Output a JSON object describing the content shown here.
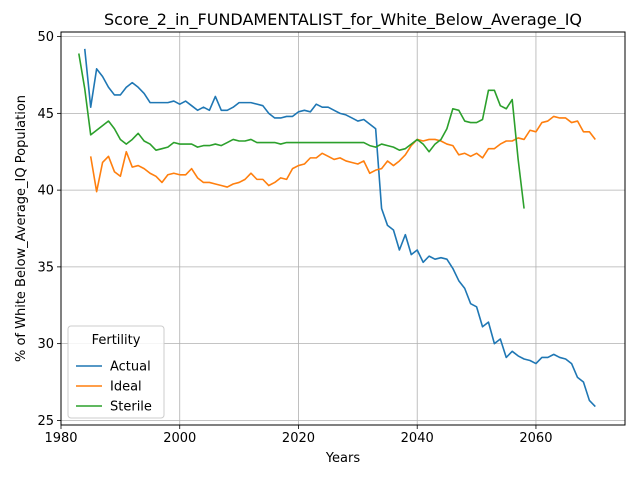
{
  "chart_data": {
    "type": "line",
    "title": "Score_2_in_FUNDAMENTALIST_for_White_Below_Average_IQ",
    "xlabel": "Years",
    "ylabel": "% of White Below_Average_IQ Population",
    "xlim": [
      1980,
      2075
    ],
    "ylim": [
      24.7,
      50.3
    ],
    "xticks": [
      1980,
      2000,
      2020,
      2040,
      2060
    ],
    "yticks": [
      25,
      30,
      35,
      40,
      45,
      50
    ],
    "grid": true,
    "legend": {
      "title": "Fertility",
      "position": "lower-left"
    },
    "colors": {
      "Actual": "#1f77b4",
      "Ideal": "#ff7f0e",
      "Sterile": "#2ca02c"
    },
    "series": [
      {
        "name": "Actual",
        "x": [
          1984,
          1985,
          1986,
          1987,
          1988,
          1989,
          1990,
          1991,
          1992,
          1993,
          1994,
          1995,
          1996,
          1997,
          1998,
          1999,
          2000,
          2001,
          2002,
          2003,
          2004,
          2005,
          2006,
          2007,
          2008,
          2009,
          2010,
          2011,
          2012,
          2013,
          2014,
          2015,
          2016,
          2017,
          2018,
          2019,
          2020,
          2021,
          2022,
          2023,
          2024,
          2025,
          2026,
          2027,
          2028,
          2029,
          2030,
          2031,
          2032,
          2033,
          2034,
          2035,
          2036,
          2037,
          2038,
          2039,
          2040,
          2041,
          2042,
          2043,
          2044,
          2045,
          2046,
          2047,
          2048,
          2049,
          2050,
          2051,
          2052,
          2053,
          2054,
          2055,
          2056,
          2057,
          2058,
          2059,
          2060,
          2061,
          2062,
          2063,
          2064,
          2065,
          2066,
          2067,
          2068,
          2069,
          2070
        ],
        "values": [
          49.2,
          45.4,
          47.9,
          47.4,
          46.7,
          46.2,
          46.2,
          46.7,
          47.0,
          46.7,
          46.3,
          45.7,
          45.7,
          45.7,
          45.7,
          45.8,
          45.6,
          45.8,
          45.5,
          45.2,
          45.4,
          45.2,
          46.1,
          45.2,
          45.2,
          45.4,
          45.7,
          45.7,
          45.7,
          45.6,
          45.5,
          45.0,
          44.7,
          44.7,
          44.8,
          44.8,
          45.1,
          45.2,
          45.1,
          45.6,
          45.4,
          45.4,
          45.2,
          45.0,
          44.9,
          44.7,
          44.5,
          44.6,
          44.3,
          44.0,
          38.8,
          37.7,
          37.4,
          36.1,
          37.1,
          35.8,
          36.1,
          35.3,
          35.7,
          35.5,
          35.6,
          35.5,
          34.9,
          34.1,
          33.6,
          32.6,
          32.4,
          31.1,
          31.4,
          30.0,
          30.3,
          29.1,
          29.5,
          29.2,
          29.0,
          28.9,
          28.7,
          29.1,
          29.1,
          29.3,
          29.1,
          29.0,
          28.7,
          27.8,
          27.5,
          26.3,
          25.9
        ]
      },
      {
        "name": "Ideal",
        "x": [
          1985,
          1986,
          1987,
          1988,
          1989,
          1990,
          1991,
          1992,
          1993,
          1994,
          1995,
          1996,
          1997,
          1998,
          1999,
          2000,
          2001,
          2002,
          2003,
          2004,
          2005,
          2006,
          2007,
          2008,
          2009,
          2010,
          2011,
          2012,
          2013,
          2014,
          2015,
          2016,
          2017,
          2018,
          2019,
          2020,
          2021,
          2022,
          2023,
          2024,
          2025,
          2026,
          2027,
          2028,
          2029,
          2030,
          2031,
          2032,
          2033,
          2034,
          2035,
          2036,
          2037,
          2038,
          2039,
          2040,
          2041,
          2042,
          2043,
          2044,
          2045,
          2046,
          2047,
          2048,
          2049,
          2050,
          2051,
          2052,
          2053,
          2054,
          2055,
          2056,
          2057,
          2058,
          2059,
          2060,
          2061,
          2062,
          2063,
          2064,
          2065,
          2066,
          2067,
          2068,
          2069,
          2070
        ],
        "values": [
          42.2,
          39.9,
          41.8,
          42.2,
          41.2,
          40.9,
          42.5,
          41.5,
          41.6,
          41.4,
          41.1,
          40.9,
          40.5,
          41.0,
          41.1,
          41.0,
          41.0,
          41.4,
          40.8,
          40.5,
          40.5,
          40.4,
          40.3,
          40.2,
          40.4,
          40.5,
          40.7,
          41.1,
          40.7,
          40.7,
          40.3,
          40.5,
          40.8,
          40.7,
          41.4,
          41.6,
          41.7,
          42.1,
          42.1,
          42.4,
          42.2,
          42.0,
          42.1,
          41.9,
          41.8,
          41.7,
          41.9,
          41.1,
          41.3,
          41.4,
          41.9,
          41.6,
          41.9,
          42.3,
          42.9,
          43.3,
          43.2,
          43.3,
          43.3,
          43.2,
          43.0,
          42.9,
          42.3,
          42.4,
          42.2,
          42.4,
          42.1,
          42.7,
          42.7,
          43.0,
          43.2,
          43.2,
          43.4,
          43.3,
          43.9,
          43.8,
          44.4,
          44.5,
          44.8,
          44.7,
          44.7,
          44.4,
          44.5,
          43.8,
          43.8,
          43.3
        ]
      },
      {
        "name": "Sterile",
        "x": [
          1983,
          1984,
          1985,
          1986,
          1987,
          1988,
          1989,
          1990,
          1991,
          1992,
          1993,
          1994,
          1995,
          1996,
          1997,
          1998,
          1999,
          2000,
          2001,
          2002,
          2003,
          2004,
          2005,
          2006,
          2007,
          2008,
          2009,
          2010,
          2011,
          2012,
          2013,
          2014,
          2015,
          2016,
          2017,
          2018,
          2019,
          2020,
          2021,
          2022,
          2023,
          2024,
          2025,
          2026,
          2027,
          2028,
          2029,
          2030,
          2031,
          2032,
          2033,
          2034,
          2035,
          2036,
          2037,
          2038,
          2039,
          2040,
          2041,
          2042,
          2043,
          2044,
          2045,
          2046,
          2047,
          2048,
          2049,
          2050,
          2051,
          2052,
          2053,
          2054,
          2055,
          2056,
          2057,
          2058
        ],
        "values": [
          48.9,
          46.6,
          43.6,
          43.9,
          44.2,
          44.5,
          44.0,
          43.3,
          43.0,
          43.3,
          43.7,
          43.2,
          43.0,
          42.6,
          42.7,
          42.8,
          43.1,
          43.0,
          43.0,
          43.0,
          42.8,
          42.9,
          42.9,
          43.0,
          42.9,
          43.1,
          43.3,
          43.2,
          43.2,
          43.3,
          43.1,
          43.1,
          43.1,
          43.1,
          43.0,
          43.1,
          43.1,
          43.1,
          43.1,
          43.1,
          43.1,
          43.1,
          43.1,
          43.1,
          43.1,
          43.1,
          43.1,
          43.1,
          43.1,
          42.9,
          42.8,
          43.0,
          42.9,
          42.8,
          42.6,
          42.7,
          43.0,
          43.3,
          43.0,
          42.5,
          43.0,
          43.3,
          44.0,
          45.3,
          45.2,
          44.5,
          44.4,
          44.4,
          44.6,
          46.5,
          46.5,
          45.5,
          45.3,
          45.9,
          42.0,
          38.8
        ]
      }
    ]
  }
}
